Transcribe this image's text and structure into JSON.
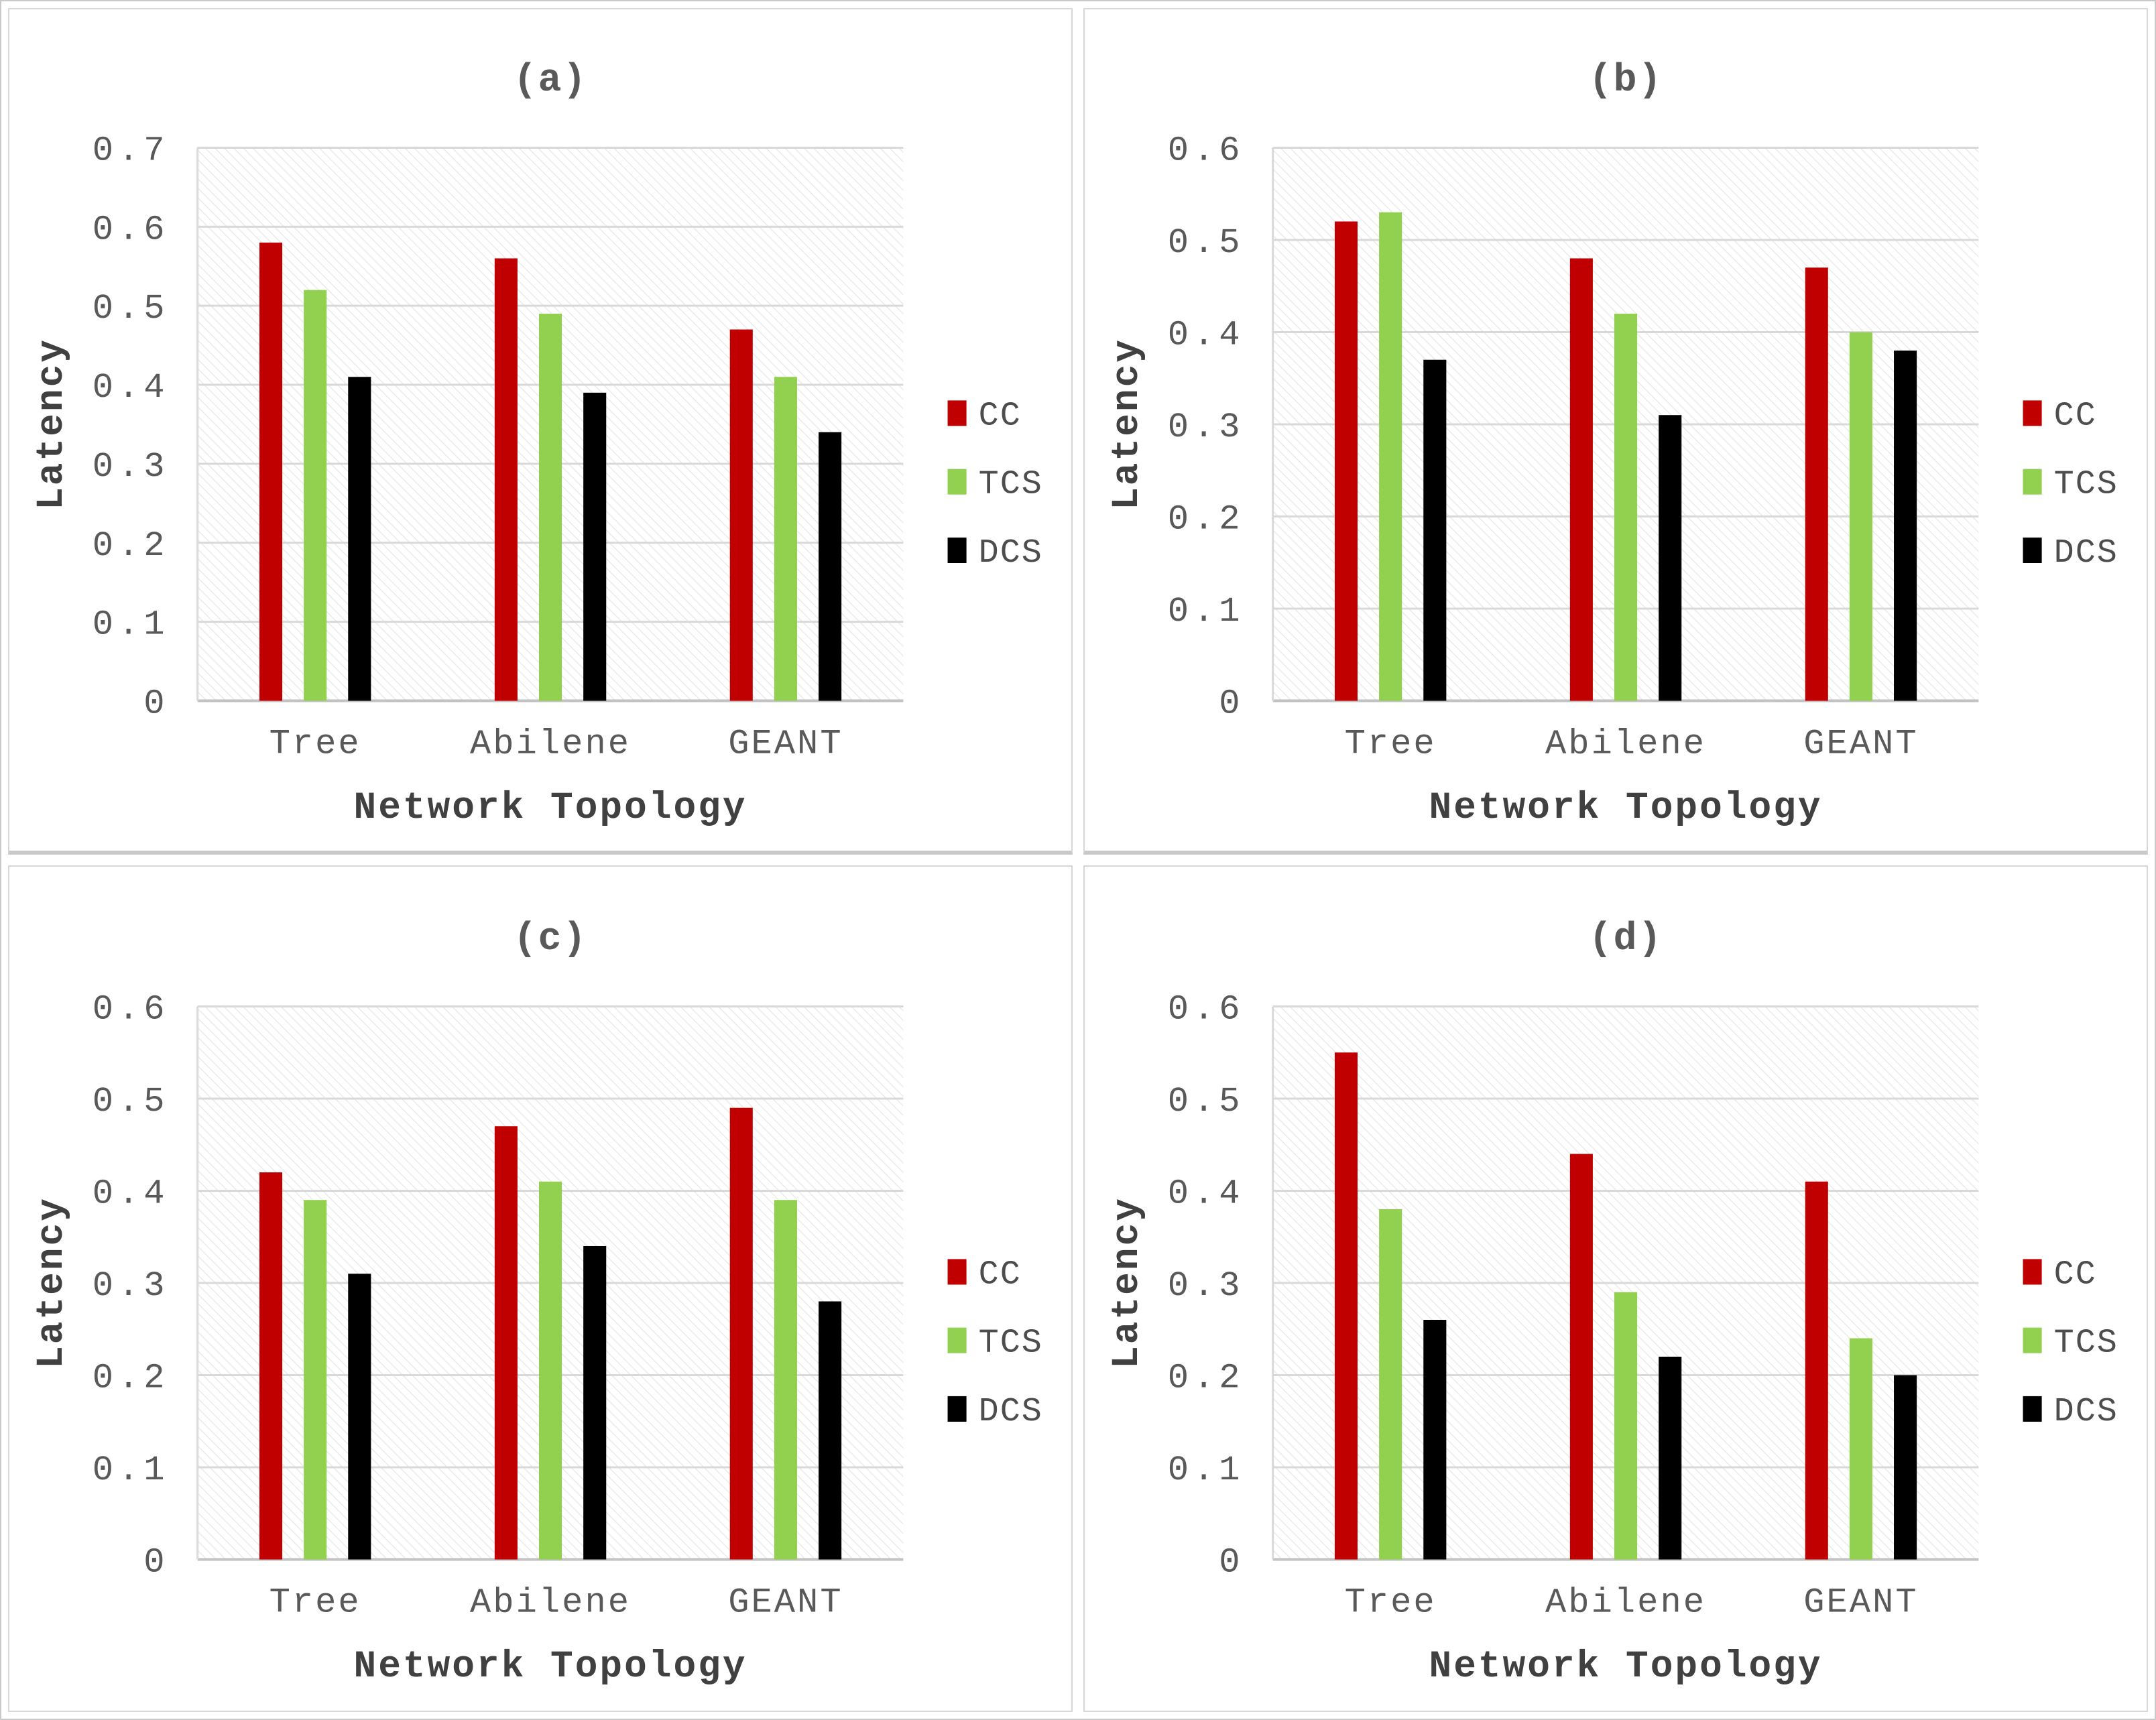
{
  "page": {
    "background": "#ffffff",
    "panel_border": "#d7d7d7",
    "grid_color": "#d9d9d9",
    "baseline_color": "#c2c2c2",
    "hatch_color": "#ebebeb",
    "tick_text_color": "#595959",
    "axis_title_color": "#404040"
  },
  "legend": {
    "position": "right",
    "entries": [
      {
        "label": "CC",
        "color": "#c00000",
        "swatch": "red-square-icon"
      },
      {
        "label": "TCS",
        "color": "#92d050",
        "swatch": "green-square-icon"
      },
      {
        "label": "DCS",
        "color": "#000000",
        "swatch": "black-square-icon"
      }
    ]
  },
  "charts": [
    {
      "chart_data": {
        "type": "bar",
        "title": "(a)",
        "xlabel": "Network Topology",
        "ylabel": "Latency",
        "categories": [
          "Tree",
          "Abilene",
          "GEANT"
        ],
        "series": [
          {
            "name": "CC",
            "color": "#c00000",
            "values": [
              0.58,
              0.56,
              0.47
            ]
          },
          {
            "name": "TCS",
            "color": "#92d050",
            "values": [
              0.52,
              0.49,
              0.41
            ]
          },
          {
            "name": "DCS",
            "color": "#000000",
            "values": [
              0.41,
              0.39,
              0.34
            ]
          }
        ],
        "ylim": [
          0,
          0.7
        ],
        "ytick": 0.1,
        "grid": true,
        "plot_background": "diagonal-hatch",
        "legend_position": "right"
      }
    },
    {
      "chart_data": {
        "type": "bar",
        "title": "(b)",
        "xlabel": "Network Topology",
        "ylabel": "Latency",
        "categories": [
          "Tree",
          "Abilene",
          "GEANT"
        ],
        "series": [
          {
            "name": "CC",
            "color": "#c00000",
            "values": [
              0.52,
              0.48,
              0.47
            ]
          },
          {
            "name": "TCS",
            "color": "#92d050",
            "values": [
              0.53,
              0.42,
              0.4
            ]
          },
          {
            "name": "DCS",
            "color": "#000000",
            "values": [
              0.37,
              0.31,
              0.38
            ]
          }
        ],
        "ylim": [
          0,
          0.6
        ],
        "ytick": 0.1,
        "grid": true,
        "plot_background": "diagonal-hatch",
        "legend_position": "right"
      }
    },
    {
      "chart_data": {
        "type": "bar",
        "title": "(c)",
        "xlabel": "Network Topology",
        "ylabel": "Latency",
        "categories": [
          "Tree",
          "Abilene",
          "GEANT"
        ],
        "series": [
          {
            "name": "CC",
            "color": "#c00000",
            "values": [
              0.42,
              0.47,
              0.49
            ]
          },
          {
            "name": "TCS",
            "color": "#92d050",
            "values": [
              0.39,
              0.41,
              0.39
            ]
          },
          {
            "name": "DCS",
            "color": "#000000",
            "values": [
              0.31,
              0.34,
              0.28
            ]
          }
        ],
        "ylim": [
          0,
          0.6
        ],
        "ytick": 0.1,
        "grid": true,
        "plot_background": "diagonal-hatch",
        "legend_position": "right"
      }
    },
    {
      "chart_data": {
        "type": "bar",
        "title": "(d)",
        "xlabel": "Network Topology",
        "ylabel": "Latency",
        "categories": [
          "Tree",
          "Abilene",
          "GEANT"
        ],
        "series": [
          {
            "name": "CC",
            "color": "#c00000",
            "values": [
              0.55,
              0.44,
              0.41
            ]
          },
          {
            "name": "TCS",
            "color": "#92d050",
            "values": [
              0.38,
              0.29,
              0.24
            ]
          },
          {
            "name": "DCS",
            "color": "#000000",
            "values": [
              0.26,
              0.22,
              0.2
            ]
          }
        ],
        "ylim": [
          0,
          0.6
        ],
        "ytick": 0.1,
        "grid": true,
        "plot_background": "diagonal-hatch",
        "legend_position": "right"
      }
    }
  ]
}
